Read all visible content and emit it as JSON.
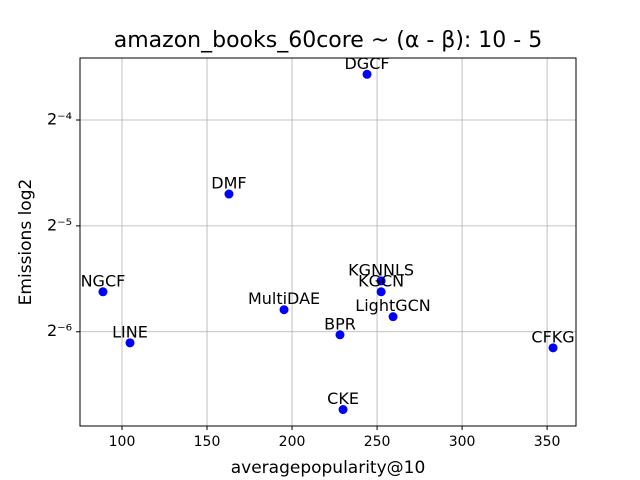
{
  "chart_data": {
    "type": "scatter",
    "title": "amazon_books_60core ~ (α - β): 10 - 5",
    "x_label": "averagepopularity@10",
    "y_label": "Emissions log2",
    "labels": [
      "DGCF",
      "DMF",
      "NGCF",
      "LINE",
      "MultiDAE",
      "KGNNLS",
      "KGCN",
      "LightGCN",
      "BPR",
      "CFKG",
      "CKE"
    ],
    "x": [
      244.1,
      162.9,
      88.8,
      104.7,
      195.3,
      252.4,
      252.4,
      259.4,
      228.2,
      353.5,
      230
    ],
    "values": [
      0.0843,
      0.0385,
      0.0203,
      0.01453,
      0.01805,
      0.0218,
      0.0203,
      0.01725,
      0.01532,
      0.01406,
      0.00939
    ],
    "color": "#0000ff",
    "xlim": [
      75.3,
      367
    ],
    "xticks": [
      100,
      150,
      200,
      250,
      300,
      350
    ],
    "ylim": [
      0.00843,
      0.0938
    ],
    "y_log_base": 2,
    "yticks": [
      {
        "value": 0.0625,
        "label": "2⁻⁴"
      },
      {
        "value": 0.03125,
        "label": "2⁻⁵"
      },
      {
        "value": 0.015625,
        "label": "2⁻⁶"
      }
    ],
    "grid": true
  }
}
